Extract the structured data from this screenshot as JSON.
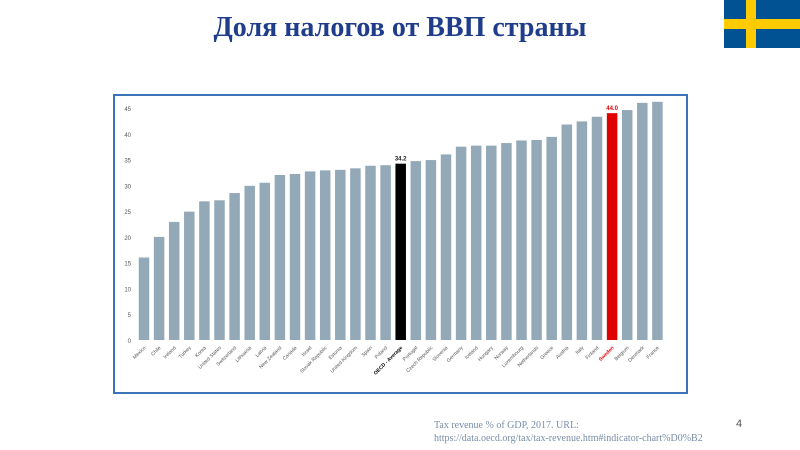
{
  "slide": {
    "title": "Доля налогов от ВВП страны",
    "source_line1": "Tax revenue % of GDP, 2017. URL:",
    "source_line2": "https://data.oecd.org/tax/tax-revenue.htm#indicator-chart%D0%B2",
    "page_number": "4"
  },
  "flag": {
    "icon": "sweden-flag-icon",
    "blue": "#005293",
    "yellow": "#fecb00"
  },
  "colors": {
    "bar": "#93a9b8",
    "average": "#000000",
    "highlight": "#e00000",
    "frame": "#3b72b8"
  },
  "chart_data": {
    "type": "bar",
    "title": "",
    "xlabel": "",
    "ylabel": "",
    "ylim": [
      0,
      45
    ],
    "yticks": [
      0,
      5,
      10,
      15,
      20,
      25,
      30,
      35,
      40,
      45
    ],
    "grid": false,
    "categories": [
      "Mexico",
      "Chile",
      "Ireland",
      "Turkey",
      "Korea",
      "United States",
      "Switzerland",
      "Lithuania",
      "Latvia",
      "New Zealand",
      "Canada",
      "Israel",
      "Slovak Republic",
      "Estonia",
      "United Kingdom",
      "Spain",
      "Poland",
      "OECD - Average",
      "Portugal",
      "Czech Republic",
      "Slovenia",
      "Germany",
      "Iceland",
      "Hungary",
      "Norway",
      "Luxembourg",
      "Netherlands",
      "Greece",
      "Austria",
      "Italy",
      "Finland",
      "Sweden",
      "Belgium",
      "Denmark",
      "France"
    ],
    "values": [
      16.0,
      20.0,
      22.9,
      24.9,
      26.9,
      27.1,
      28.5,
      29.9,
      30.5,
      32.0,
      32.2,
      32.7,
      32.9,
      33.0,
      33.3,
      33.8,
      33.9,
      34.2,
      34.7,
      34.9,
      36.0,
      37.5,
      37.7,
      37.7,
      38.2,
      38.7,
      38.8,
      39.4,
      41.8,
      42.4,
      43.3,
      44.0,
      44.6,
      46.0,
      46.2
    ],
    "highlights": {
      "OECD - Average": "average",
      "Sweden": "highlight"
    },
    "data_labels": {
      "OECD - Average": "34.2",
      "Sweden": "44.0"
    }
  }
}
